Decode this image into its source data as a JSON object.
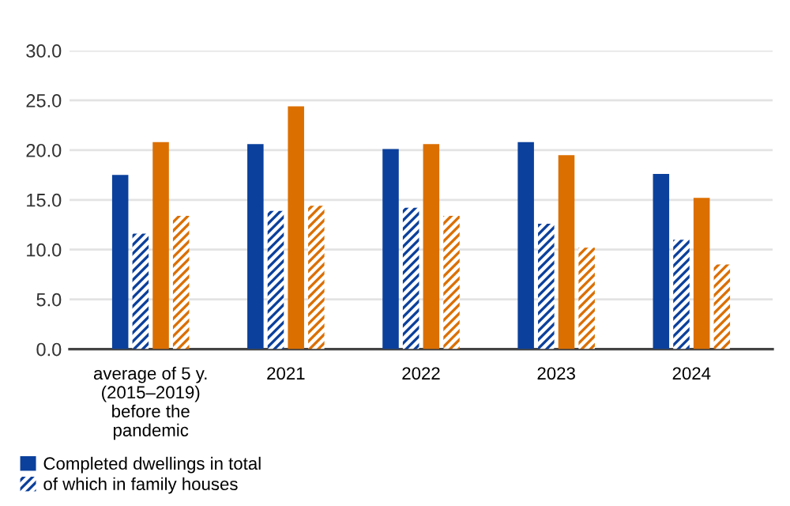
{
  "chart_data": {
    "type": "bar",
    "categories": [
      "average of 5 y.\n(2015–2019)\nbefore the\npandemic",
      "2021",
      "2022",
      "2023",
      "2024"
    ],
    "series": [
      {
        "name": "Completed dwellings in total",
        "color": "#0b409c",
        "values": [
          17.5,
          20.6,
          20.1,
          20.8,
          17.6
        ]
      },
      {
        "name": "of which in family houses",
        "color": "#0b409c",
        "values": [
          11.6,
          13.9,
          14.2,
          12.6,
          11.0
        ]
      },
      {
        "color": "#db6f00",
        "values": [
          20.8,
          24.4,
          20.6,
          19.5,
          15.2
        ]
      },
      {
        "color": "#db6f00",
        "values": [
          13.4,
          14.4,
          13.4,
          10.2,
          8.5
        ]
      }
    ],
    "ylim": [
      0,
      30
    ],
    "yticks": [
      {
        "value": 0,
        "label": "0.0"
      },
      {
        "value": 5,
        "label": "5.0"
      },
      {
        "value": 10,
        "label": "10.0"
      },
      {
        "value": 15,
        "label": "15.0"
      },
      {
        "value": 20,
        "label": "20.0"
      },
      {
        "value": 25,
        "label": "25.0"
      },
      {
        "value": 30,
        "label": "30.0"
      }
    ],
    "grid": "y",
    "legend": "bottom left"
  }
}
